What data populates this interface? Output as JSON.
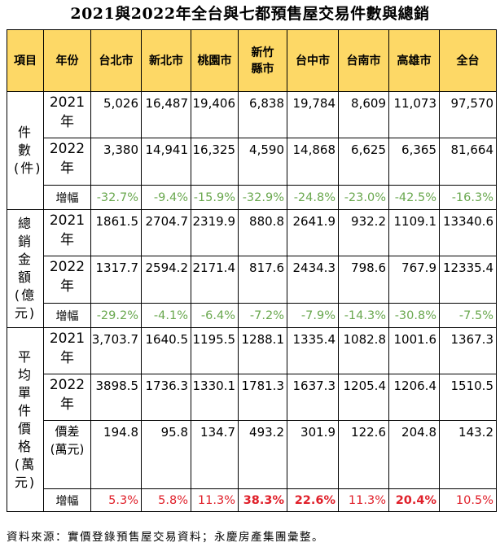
{
  "title": "2021與2022年全台與七都預售屋交易件數與總銷",
  "headers": [
    "項目",
    "年份",
    "台北市",
    "新北市",
    "桃園市",
    "新竹縣市",
    "台中市",
    "台南市",
    "高雄市",
    "全台"
  ],
  "groups": {
    "count": {
      "label": "件數(件)"
    },
    "total": {
      "label": "總銷金額(億元)"
    },
    "avg": {
      "label": "平均單件價格(萬元)"
    }
  },
  "rows": {
    "count_2021": {
      "year": "2021",
      "suffix": "年",
      "values": [
        "5,026",
        "16,487",
        "19,406",
        "6,838",
        "19,784",
        "8,609",
        "11,073",
        "97,570"
      ]
    },
    "count_2022": {
      "year": "2022",
      "suffix": "年",
      "values": [
        "3,380",
        "14,941",
        "16,325",
        "4,590",
        "14,868",
        "6,625",
        "6,365",
        "81,664"
      ]
    },
    "count_growth": {
      "label": "增幅",
      "values": [
        "-32.7%",
        "-9.4%",
        "-15.9%",
        "-32.9%",
        "-24.8%",
        "-23.0%",
        "-42.5%",
        "-16.3%"
      ]
    },
    "total_2021": {
      "year": "2021",
      "suffix": "年",
      "values": [
        "1861.5",
        "2704.7",
        "2319.9",
        "880.8",
        "2641.9",
        "932.2",
        "1109.1",
        "13340.6"
      ]
    },
    "total_2022": {
      "year": "2022",
      "suffix": "年",
      "values": [
        "1317.7",
        "2594.2",
        "2171.4",
        "817.6",
        "2434.3",
        "798.6",
        "767.9",
        "12335.4"
      ]
    },
    "total_growth": {
      "label": "增幅",
      "values": [
        "-29.2%",
        "-4.1%",
        "-6.4%",
        "-7.2%",
        "-7.9%",
        "-14.3%",
        "-30.8%",
        "-7.5%"
      ]
    },
    "avg_2021": {
      "year": "2021",
      "suffix": "年",
      "values": [
        "3,703.7",
        "1640.5",
        "1195.5",
        "1288.1",
        "1335.4",
        "1082.8",
        "1001.6",
        "1367.3"
      ]
    },
    "avg_2022": {
      "year": "2022",
      "suffix": "年",
      "values": [
        "3898.5",
        "1736.3",
        "1330.1",
        "1781.3",
        "1637.3",
        "1205.4",
        "1206.4",
        "1510.5"
      ]
    },
    "avg_diff": {
      "label": "價差(萬元)",
      "values": [
        "194.8",
        "95.8",
        "134.7",
        "493.2",
        "301.9",
        "122.6",
        "204.8",
        "143.2"
      ]
    },
    "avg_growth": {
      "label": "增幅",
      "values": [
        "5.3%",
        "5.8%",
        "11.3%",
        "38.3%",
        "22.6%",
        "11.3%",
        "20.4%",
        "10.5%"
      ],
      "bold_flags": [
        false,
        false,
        false,
        true,
        true,
        false,
        true,
        false
      ]
    }
  },
  "note": "資料來源：實價登錄預售屋交易資料；永慶房產集團彙整。",
  "colors": {
    "header_bg": "#fdd866",
    "negative": "#6aa84f",
    "positive": "#e0202a"
  }
}
